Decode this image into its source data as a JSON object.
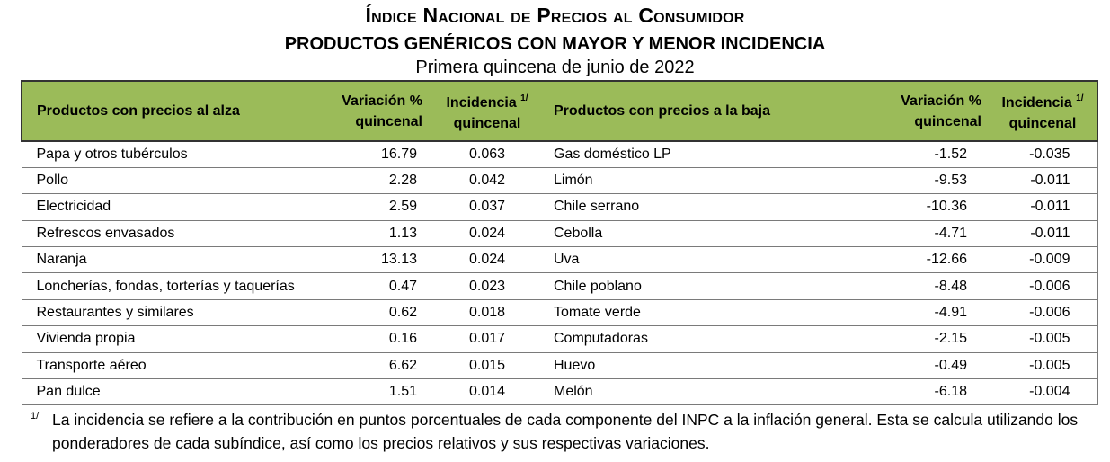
{
  "header": {
    "title": "Índice Nacional de Precios al Consumidor",
    "subtitle": "PRODUCTOS GENÉRICOS CON MAYOR Y MENOR INCIDENCIA",
    "period": "Primera quincena de junio de 2022"
  },
  "table": {
    "columns": {
      "up_products": "Productos con precios al alza",
      "up_variation_l1": "Variación %",
      "up_variation_l2": "quincenal",
      "up_incidence_l1": "Incidencia",
      "up_incidence_sup": "1/",
      "up_incidence_l2": "quincenal",
      "down_products": "Productos con precios a la baja",
      "down_variation_l1": "Variación %",
      "down_variation_l2": "quincenal",
      "down_incidence_l1": "Incidencia",
      "down_incidence_sup": "1/",
      "down_incidence_l2": "quincenal"
    },
    "rows": [
      {
        "up_product": "Papa y otros tubérculos",
        "up_var": "16.79",
        "up_inc": "0.063",
        "down_product": "Gas doméstico LP",
        "down_var": "-1.52",
        "down_inc": "-0.035"
      },
      {
        "up_product": "Pollo",
        "up_var": "2.28",
        "up_inc": "0.042",
        "down_product": "Limón",
        "down_var": "-9.53",
        "down_inc": "-0.011"
      },
      {
        "up_product": "Electricidad",
        "up_var": "2.59",
        "up_inc": "0.037",
        "down_product": "Chile serrano",
        "down_var": "-10.36",
        "down_inc": "-0.011"
      },
      {
        "up_product": "Refrescos envasados",
        "up_var": "1.13",
        "up_inc": "0.024",
        "down_product": "Cebolla",
        "down_var": "-4.71",
        "down_inc": "-0.011"
      },
      {
        "up_product": "Naranja",
        "up_var": "13.13",
        "up_inc": "0.024",
        "down_product": "Uva",
        "down_var": "-12.66",
        "down_inc": "-0.009"
      },
      {
        "up_product": "Loncherías, fondas, torterías y taquerías",
        "up_var": "0.47",
        "up_inc": "0.023",
        "down_product": "Chile poblano",
        "down_var": "-8.48",
        "down_inc": "-0.006"
      },
      {
        "up_product": "Restaurantes y similares",
        "up_var": "0.62",
        "up_inc": "0.018",
        "down_product": "Tomate verde",
        "down_var": "-4.91",
        "down_inc": "-0.006"
      },
      {
        "up_product": "Vivienda propia",
        "up_var": "0.16",
        "up_inc": "0.017",
        "down_product": "Computadoras",
        "down_var": "-2.15",
        "down_inc": "-0.005"
      },
      {
        "up_product": "Transporte aéreo",
        "up_var": "6.62",
        "up_inc": "0.015",
        "down_product": "Huevo",
        "down_var": "-0.49",
        "down_inc": "-0.005"
      },
      {
        "up_product": "Pan dulce",
        "up_var": "1.51",
        "up_inc": "0.014",
        "down_product": "Melón",
        "down_var": "-6.18",
        "down_inc": "-0.004"
      }
    ]
  },
  "footnote": {
    "mark": "1/",
    "text": "La incidencia se refiere a la contribución en puntos porcentuales de cada componente del INPC a la inflación general. Esta se calcula utilizando los ponderadores de cada subíndice, así como los precios relativos y sus respectivas variaciones."
  },
  "colors": {
    "header_fill": "#9bbb59"
  }
}
